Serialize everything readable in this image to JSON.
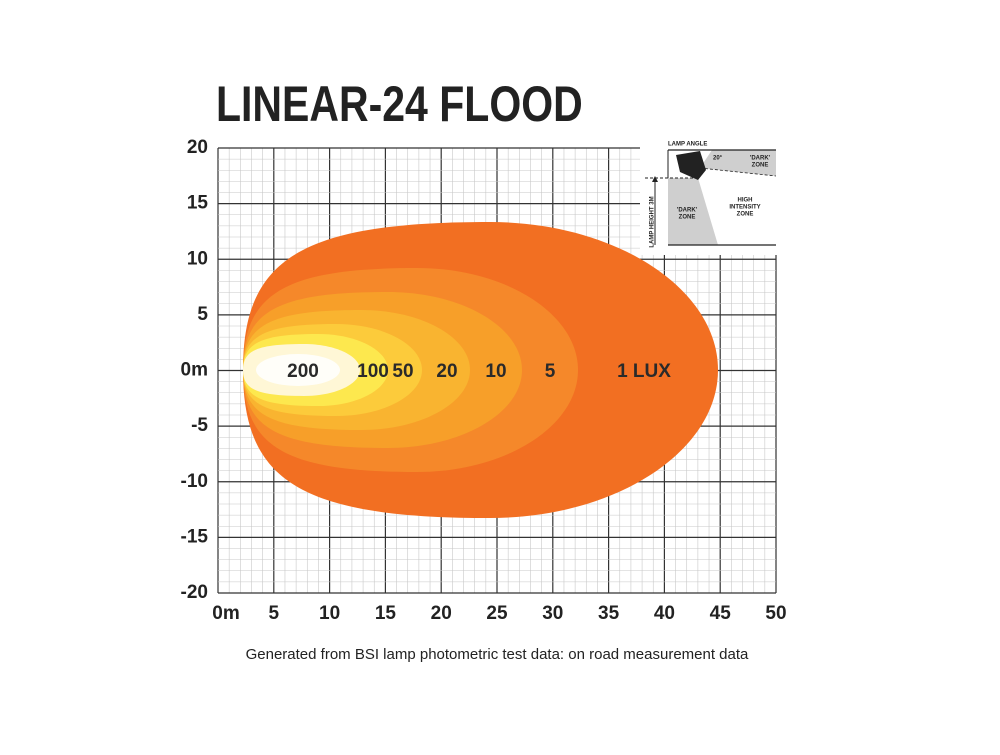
{
  "title": "LINEAR-24 FLOOD",
  "y_axis_labels": [
    "20",
    "15",
    "10",
    "5",
    "0m",
    "-5",
    "-10",
    "-15",
    "-20"
  ],
  "x_axis_labels": [
    "0m",
    "5",
    "10",
    "15",
    "20",
    "25",
    "30",
    "35",
    "40",
    "45",
    "50"
  ],
  "zones": [
    {
      "label": "1 LUX"
    },
    {
      "label": "5"
    },
    {
      "label": "10"
    },
    {
      "label": "20"
    },
    {
      "label": "50"
    },
    {
      "label": "100"
    },
    {
      "label": "200"
    }
  ],
  "inset": {
    "lamp_angle": "LAMP ANGLE",
    "angle": "20°",
    "dark_zone_top": [
      "'DARK'",
      "ZONE"
    ],
    "lamp_height": "LAMP HEIGHT 3M",
    "dark_zone_bottom": [
      "'DARK'",
      "ZONE"
    ],
    "high_intensity": [
      "HIGH",
      "INTENSITY",
      "ZONE"
    ]
  },
  "footnote": "Generated from BSI lamp photometric test data: on road measurement data"
}
